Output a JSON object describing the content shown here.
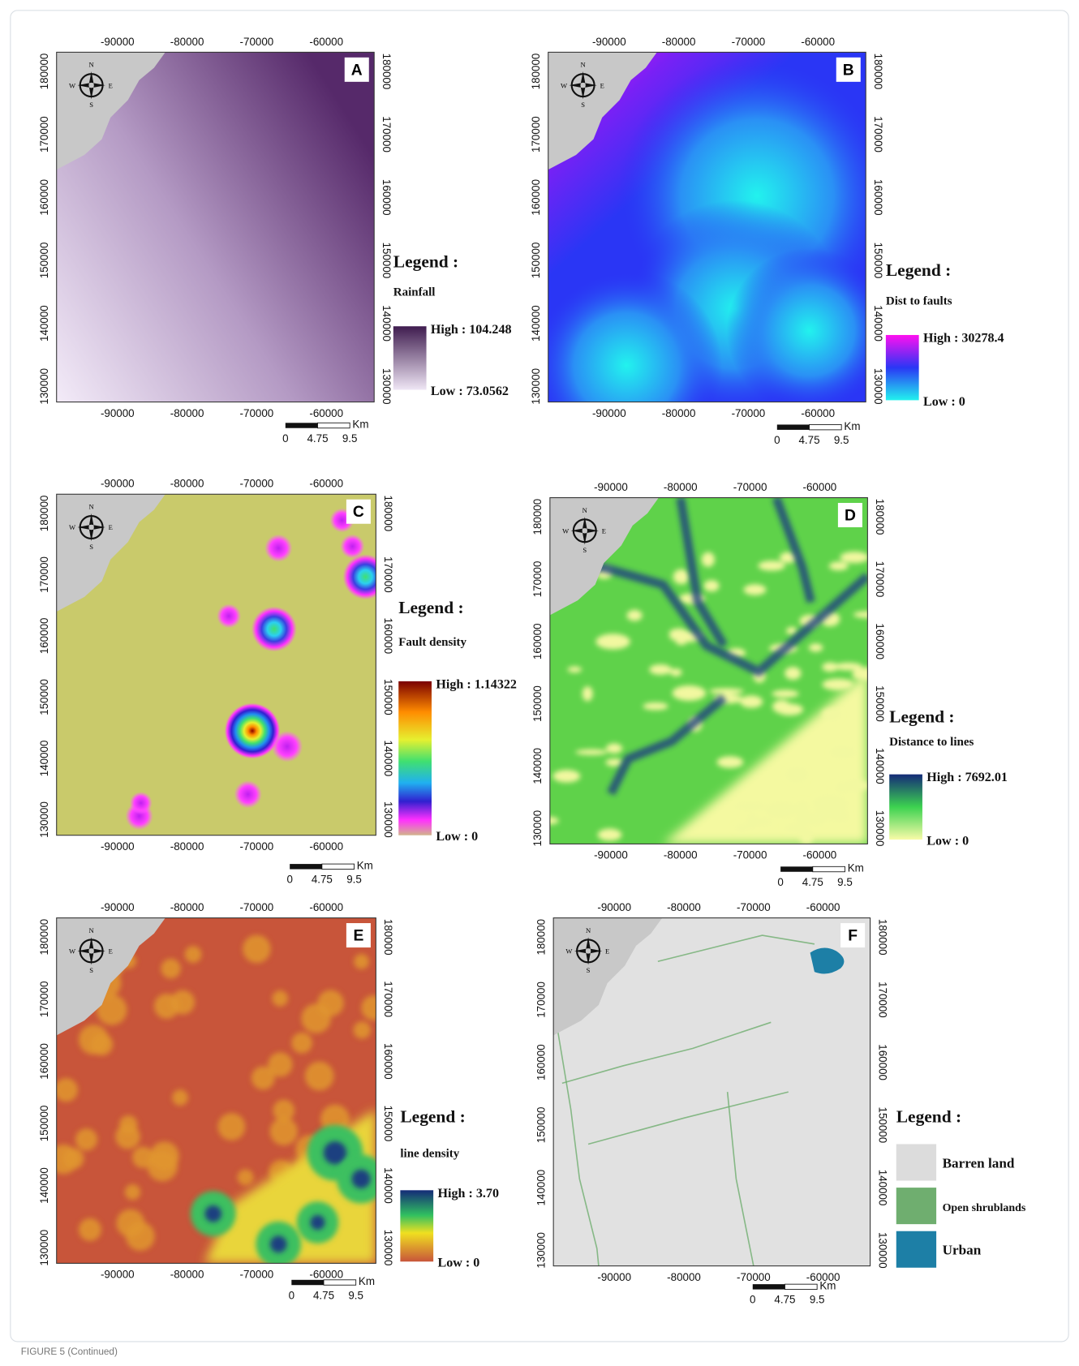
{
  "panels": [
    {
      "label": "A",
      "x_ticks": [
        "-90000",
        "-80000",
        "-70000",
        "-60000"
      ],
      "y_ticks": [
        "180000",
        "170000",
        "160000",
        "150000",
        "140000",
        "130000"
      ],
      "compass": [
        "N",
        "S",
        "E",
        "W"
      ],
      "legend": {
        "title": "Legend :",
        "name": "Rainfall",
        "high": "High : 104.248",
        "low": "Low : 73.0562"
      },
      "scale": [
        "0",
        "4.75",
        "9.5",
        "Km"
      ]
    },
    {
      "label": "B",
      "x_ticks": [
        "-90000",
        "-80000",
        "-70000",
        "-60000"
      ],
      "y_ticks": [
        "180000",
        "170000",
        "160000",
        "150000",
        "140000",
        "130000"
      ],
      "compass": [
        "N",
        "S",
        "E",
        "W"
      ],
      "legend": {
        "title": "Legend :",
        "name": "Dist to faults",
        "high": "High : 30278.4",
        "low": "Low : 0"
      },
      "scale": [
        "0",
        "4.75",
        "9.5",
        "Km"
      ]
    },
    {
      "label": "C",
      "x_ticks": [
        "-90000",
        "-80000",
        "-70000",
        "-60000"
      ],
      "y_ticks": [
        "180000",
        "170000",
        "160000",
        "150000",
        "140000",
        "130000"
      ],
      "compass": [
        "N",
        "S",
        "E",
        "W"
      ],
      "legend": {
        "title": "Legend :",
        "name": "Fault density",
        "high": "High : 1.14322",
        "low": "Low : 0"
      },
      "scale": [
        "0",
        "4.75",
        "9.5",
        "Km"
      ]
    },
    {
      "label": "D",
      "x_ticks": [
        "-90000",
        "-80000",
        "-70000",
        "-60000"
      ],
      "y_ticks": [
        "180000",
        "170000",
        "160000",
        "150000",
        "140000",
        "130000"
      ],
      "compass": [
        "N",
        "S",
        "E",
        "W"
      ],
      "legend": {
        "title": "Legend :",
        "name": "Distance to lines",
        "high": "High : 7692.01",
        "low": "Low : 0"
      },
      "scale": [
        "0",
        "4.75",
        "9.5",
        "Km"
      ]
    },
    {
      "label": "E",
      "x_ticks": [
        "-90000",
        "-80000",
        "-70000",
        "-60000"
      ],
      "y_ticks": [
        "180000",
        "170000",
        "160000",
        "150000",
        "140000",
        "130000"
      ],
      "compass": [
        "N",
        "S",
        "E",
        "W"
      ],
      "legend": {
        "title": "Legend :",
        "name": "line density",
        "high": "High : 3.70",
        "low": "Low : 0"
      },
      "scale": [
        "0",
        "4.75",
        "9.5",
        "Km"
      ]
    },
    {
      "label": "F",
      "x_ticks": [
        "-90000",
        "-80000",
        "-70000",
        "-60000"
      ],
      "y_ticks": [
        "180000",
        "170000",
        "160000",
        "150000",
        "140000",
        "130000"
      ],
      "compass": [
        "N",
        "S",
        "E",
        "W"
      ],
      "legend": {
        "title": "Legend :",
        "items": [
          "Barren land",
          "Open shrublands",
          "Urban"
        ]
      },
      "scale": [
        "0",
        "4.75",
        "9.5",
        "Km"
      ]
    }
  ],
  "caption": "FIGURE 5 (Continued)"
}
